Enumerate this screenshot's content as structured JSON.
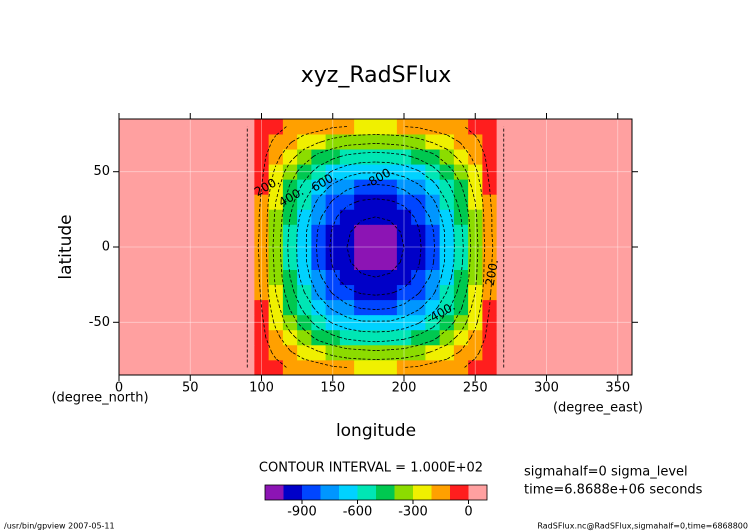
{
  "chart_data": {
    "type": "contour",
    "title": "xyz_RadSFlux",
    "x_label": "longitude",
    "x_units": "(degree_east)",
    "y_label": "latitude",
    "y_units": "(degree_north)",
    "xlim": [
      0,
      360
    ],
    "xticks": [
      0,
      50,
      100,
      150,
      200,
      250,
      300,
      350
    ],
    "ylim": [
      -85,
      85
    ],
    "yticks": [
      -50,
      0,
      50
    ],
    "grid": true,
    "lon": [
      90,
      100,
      110,
      120,
      130,
      140,
      150,
      160,
      170,
      180,
      190,
      200,
      210,
      220,
      230,
      240,
      250,
      260,
      270
    ],
    "lat": [
      -80,
      -70,
      -60,
      -50,
      -40,
      -30,
      -20,
      -10,
      0,
      10,
      20,
      30,
      40,
      50,
      60,
      70,
      80
    ],
    "z": [
      [
        0,
        -30,
        -70,
        -110,
        -140,
        -160,
        -190,
        -200,
        -210,
        -210,
        -210,
        -200,
        -190,
        -160,
        -140,
        -110,
        -70,
        -30,
        0
      ],
      [
        0,
        -50,
        -120,
        -190,
        -250,
        -290,
        -330,
        -360,
        -370,
        -380,
        -370,
        -360,
        -330,
        -290,
        -250,
        -190,
        -120,
        -50,
        0
      ],
      [
        0,
        -70,
        -170,
        -270,
        -350,
        -430,
        -480,
        -520,
        -540,
        -550,
        -540,
        -520,
        -480,
        -430,
        -350,
        -270,
        -170,
        -70,
        0
      ],
      [
        0,
        -80,
        -220,
        -350,
        -450,
        -540,
        -610,
        -660,
        -690,
        -690,
        -690,
        -660,
        -610,
        -540,
        -450,
        -350,
        -220,
        -80,
        0
      ],
      [
        0,
        -100,
        -260,
        -410,
        -530,
        -640,
        -720,
        -780,
        -810,
        -820,
        -810,
        -780,
        -720,
        -640,
        -530,
        -410,
        -260,
        -100,
        0
      ],
      [
        0,
        -110,
        -300,
        -460,
        -600,
        -720,
        -810,
        -880,
        -910,
        -920,
        -910,
        -880,
        -810,
        -720,
        -600,
        -460,
        -300,
        -110,
        0
      ],
      [
        0,
        -120,
        -320,
        -500,
        -650,
        -780,
        -880,
        -950,
        -990,
        -1000,
        -990,
        -950,
        -880,
        -780,
        -650,
        -500,
        -320,
        -120,
        0
      ],
      [
        0,
        -120,
        -330,
        -520,
        -680,
        -810,
        -910,
        -990,
        -1030,
        -1040,
        -1030,
        -990,
        -910,
        -810,
        -680,
        -520,
        -330,
        -120,
        0
      ],
      [
        0,
        -130,
        -340,
        -530,
        -680,
        -820,
        -920,
        -1000,
        -1040,
        -1050,
        -1040,
        -1000,
        -920,
        -820,
        -680,
        -530,
        -340,
        -130,
        0
      ],
      [
        0,
        -120,
        -330,
        -520,
        -680,
        -810,
        -910,
        -990,
        -1030,
        -1040,
        -1030,
        -990,
        -910,
        -810,
        -680,
        -520,
        -330,
        -120,
        0
      ],
      [
        0,
        -120,
        -320,
        -500,
        -650,
        -780,
        -880,
        -950,
        -990,
        -1000,
        -990,
        -950,
        -880,
        -780,
        -650,
        -500,
        -320,
        -120,
        0
      ],
      [
        0,
        -110,
        -300,
        -460,
        -600,
        -720,
        -810,
        -880,
        -910,
        -920,
        -910,
        -880,
        -810,
        -720,
        -600,
        -460,
        -300,
        -110,
        0
      ],
      [
        0,
        -100,
        -260,
        -410,
        -530,
        -640,
        -720,
        -780,
        -810,
        -820,
        -810,
        -780,
        -720,
        -640,
        -530,
        -410,
        -260,
        -100,
        0
      ],
      [
        0,
        -80,
        -220,
        -350,
        -450,
        -540,
        -610,
        -660,
        -690,
        -690,
        -690,
        -660,
        -610,
        -540,
        -450,
        -350,
        -220,
        -80,
        0
      ],
      [
        0,
        -70,
        -170,
        -270,
        -350,
        -430,
        -480,
        -520,
        -540,
        -550,
        -540,
        -520,
        -480,
        -430,
        -350,
        -270,
        -170,
        -70,
        0
      ],
      [
        0,
        -50,
        -120,
        -190,
        -250,
        -290,
        -330,
        -360,
        -370,
        -380,
        -370,
        -360,
        -330,
        -290,
        -250,
        -190,
        -120,
        -50,
        0
      ],
      [
        0,
        -30,
        -70,
        -110,
        -140,
        -160,
        -190,
        -200,
        -210,
        -210,
        -210,
        -200,
        -190,
        -160,
        -140,
        -110,
        -70,
        -30,
        0
      ]
    ],
    "levels": [
      -1000,
      -900,
      -800,
      -700,
      -600,
      -500,
      -400,
      -300,
      -200,
      -100,
      0
    ],
    "colors": [
      "#8c14b4",
      "#0000c8",
      "#0046ff",
      "#0096ff",
      "#00d2ff",
      "#00e6b4",
      "#00c850",
      "#8cdc00",
      "#f0f000",
      "#ffa000",
      "#ff1e1e",
      "#ffa0a0"
    ],
    "contour_labels": [
      "200.",
      "400.",
      "600.",
      "-800.",
      "200.",
      "-400."
    ],
    "contour_interval": "CONTOUR INTERVAL = 1.000E+02",
    "colorbar_ticks": [
      -900,
      -600,
      -300,
      0
    ],
    "info": [
      "sigmahalf=0 sigma_level",
      "time=6.8688e+06 seconds"
    ],
    "footer_left": "/usr/bin/gpview  2007-05-11",
    "footer_right": "RadSFlux.nc@RadSFlux,sigmahalf=0,time=6868800"
  }
}
